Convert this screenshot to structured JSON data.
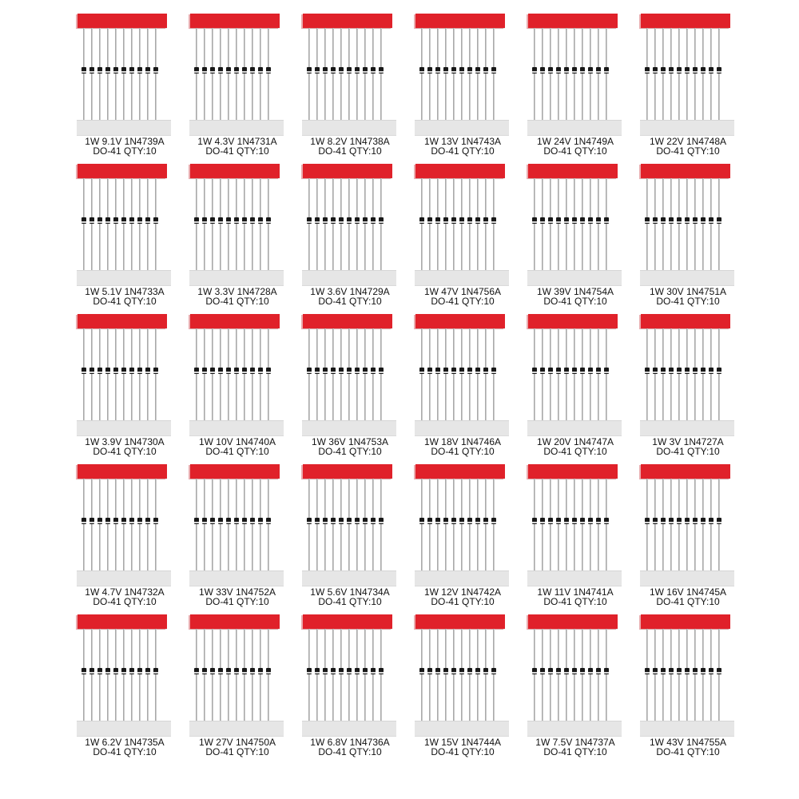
{
  "products": [
    {
      "line1": "1W 9.1V 1N4739A",
      "line2": "DO-41 QTY:10"
    },
    {
      "line1": "1W 4.3V 1N4731A",
      "line2": "DO-41 QTY:10"
    },
    {
      "line1": "1W 8.2V 1N4738A",
      "line2": "DO-41 QTY:10"
    },
    {
      "line1": "1W 13V 1N4743A",
      "line2": "DO-41 QTY:10"
    },
    {
      "line1": "1W 24V 1N4749A",
      "line2": "DO-41 QTY:10"
    },
    {
      "line1": "1W 22V 1N4748A",
      "line2": "DO-41 QTY:10"
    },
    {
      "line1": "1W 5.1V 1N4733A",
      "line2": "DO-41 QTY:10"
    },
    {
      "line1": "1W 3.3V 1N4728A",
      "line2": "DO-41 QTY:10"
    },
    {
      "line1": "1W 3.6V 1N4729A",
      "line2": "DO-41 QTY:10"
    },
    {
      "line1": "1W 47V 1N4756A",
      "line2": "DO-41 QTY:10"
    },
    {
      "line1": "1W 39V 1N4754A",
      "line2": "DO-41 QTY:10"
    },
    {
      "line1": "1W 30V 1N4751A",
      "line2": "DO-41 QTY:10"
    },
    {
      "line1": "1W 3.9V 1N4730A",
      "line2": "DO-41 QTY:10"
    },
    {
      "line1": "1W 10V 1N4740A",
      "line2": "DO-41 QTY:10"
    },
    {
      "line1": "1W 36V 1N4753A",
      "line2": "DO-41 QTY:10"
    },
    {
      "line1": "1W 18V 1N4746A",
      "line2": "DO-41 QTY:10"
    },
    {
      "line1": "1W 20V 1N4747A",
      "line2": "DO-41 QTY:10"
    },
    {
      "line1": "1W 3V 1N4727A",
      "line2": "DO-41 QTY:10"
    },
    {
      "line1": "1W 4.7V 1N4732A",
      "line2": "DO-41 QTY:10"
    },
    {
      "line1": "1W 33V 1N4752A",
      "line2": "DO-41 QTY:10"
    },
    {
      "line1": "1W 5.6V 1N4734A",
      "line2": "DO-41 QTY:10"
    },
    {
      "line1": "1W 12V 1N4742A",
      "line2": "DO-41 QTY:10"
    },
    {
      "line1": "1W 11V 1N4741A",
      "line2": "DO-41 QTY:10"
    },
    {
      "line1": "1W 16V 1N4745A",
      "line2": "DO-41 QTY:10"
    },
    {
      "line1": "1W 6.2V 1N4735A",
      "line2": "DO-41 QTY:10"
    },
    {
      "line1": "1W 27V 1N4750A",
      "line2": "DO-41 QTY:10"
    },
    {
      "line1": "1W 6.8V 1N4736A",
      "line2": "DO-41 QTY:10"
    },
    {
      "line1": "1W 15V 1N4744A",
      "line2": "DO-41 QTY:10"
    },
    {
      "line1": "1W 7.5V 1N4737A",
      "line2": "DO-41 QTY:10"
    },
    {
      "line1": "1W 43V 1N4755A",
      "line2": "DO-41 QTY:10"
    }
  ],
  "colors": {
    "tape_red": "#e0212a",
    "tape_white": "#e6e6e6",
    "diode_body": "#181818",
    "cathode_band": "#d7d7d7",
    "caption_text": "#111111"
  },
  "icons": {
    "diode": "zener-diode-icon"
  },
  "per_pack_quantity": 10
}
